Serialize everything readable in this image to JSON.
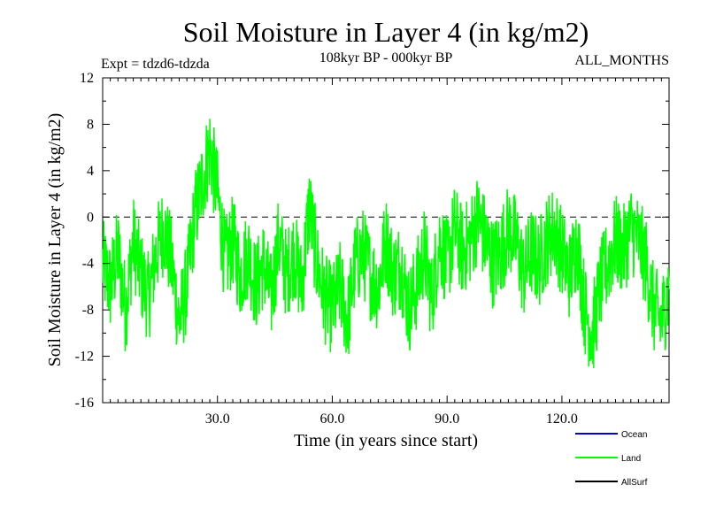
{
  "chart_data": {
    "type": "line",
    "title": "Soil Moisture in Layer 4 (in kg/m2)",
    "subtitle": "108kyr BP - 000kyr BP",
    "experiment": "Expt = tdzd6-tdzda",
    "months_label": "ALL_MONTHS",
    "xlabel": "Time (in years since start)",
    "ylabel": "Soil Moisture in Layer 4 (in kg/m2)",
    "xlim": [
      0,
      148
    ],
    "ylim": [
      -16,
      12
    ],
    "x_ticks": [
      30,
      60,
      90,
      120
    ],
    "x_tick_labels": [
      "30.0",
      "60.0",
      "90.0",
      "120.0"
    ],
    "y_ticks": [
      12,
      8,
      4,
      0,
      -4,
      -8,
      -12,
      -16
    ],
    "y_tick_labels": [
      "12",
      "8",
      "4",
      "0",
      "-4",
      "-8",
      "-12",
      "-16"
    ],
    "zero_line": 0,
    "legend": [
      {
        "name": "Ocean",
        "color": "#0000cc"
      },
      {
        "name": "Land",
        "color": "#00ff00"
      },
      {
        "name": "AllSurf",
        "color": "#000000"
      }
    ],
    "series": [
      {
        "name": "Land",
        "color": "#00ff00",
        "x": [
          0,
          2,
          4,
          6,
          8,
          10,
          12,
          14,
          16,
          18,
          20,
          22,
          24,
          26,
          28,
          30,
          32,
          34,
          36,
          38,
          40,
          42,
          44,
          46,
          48,
          50,
          52,
          54,
          56,
          58,
          60,
          62,
          64,
          66,
          68,
          70,
          72,
          74,
          76,
          78,
          80,
          82,
          84,
          86,
          88,
          90,
          92,
          94,
          96,
          98,
          100,
          102,
          104,
          106,
          108,
          110,
          112,
          114,
          116,
          118,
          120,
          122,
          124,
          126,
          128,
          130,
          132,
          134,
          136,
          138,
          140,
          142,
          144,
          146,
          148
        ],
        "values": [
          -4,
          -6,
          -3,
          -8,
          -2,
          -5,
          -7,
          -3,
          -1,
          -4,
          -9,
          -6,
          0,
          3,
          6,
          2,
          -4,
          -2,
          -5,
          -3,
          -6,
          -4,
          -7,
          -2,
          -5,
          -3,
          -6,
          1,
          -4,
          -7,
          -8,
          -6,
          -9,
          -4,
          -3,
          -5,
          -6,
          -2,
          -5,
          -4,
          -8,
          -6,
          -3,
          -7,
          -2,
          -4,
          -1,
          -3,
          -2,
          0,
          -2,
          -4,
          -3,
          -1,
          -2,
          -5,
          -3,
          -4,
          -2,
          -1,
          -3,
          -5,
          -2,
          -8,
          -10,
          -6,
          -4,
          -2,
          -3,
          -1,
          -2,
          -4,
          -8,
          -9,
          -6
        ]
      }
    ]
  }
}
